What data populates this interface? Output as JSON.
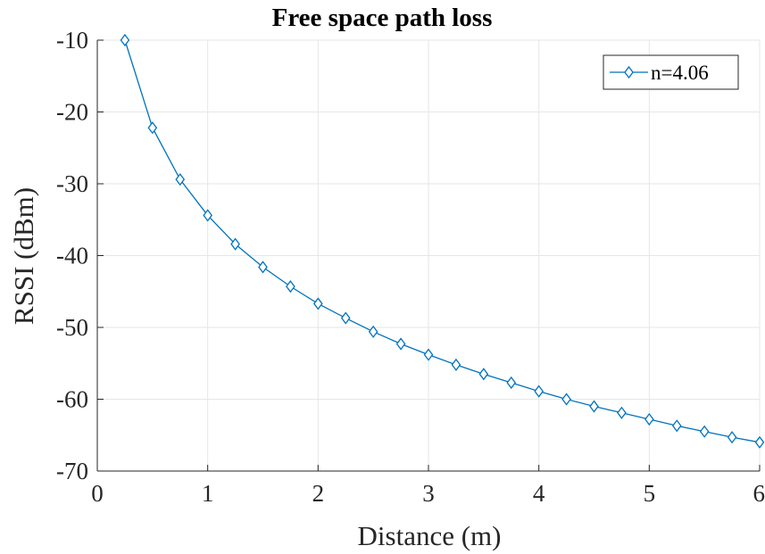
{
  "chart_data": {
    "type": "line",
    "title": "Free space path loss",
    "xlabel": "Distance (m)",
    "ylabel": "RSSI (dBm)",
    "xlim": [
      0,
      6
    ],
    "ylim": [
      -70,
      -10
    ],
    "xticks": [
      0,
      1,
      2,
      3,
      4,
      5,
      6
    ],
    "yticks": [
      -70,
      -60,
      -50,
      -40,
      -30,
      -20,
      -10
    ],
    "xtick_labels": [
      "0",
      "1",
      "2",
      "3",
      "4",
      "5",
      "6"
    ],
    "ytick_labels": [
      "-70",
      "-60",
      "-50",
      "-40",
      "-30",
      "-20",
      "-10"
    ],
    "grid": true,
    "legend_position": "top-right",
    "marker": "diamond",
    "colors": {
      "series": "#0072bd",
      "grid": "#e6e6e6",
      "axis": "#262626"
    },
    "series": [
      {
        "name": "n=4.06",
        "x": [
          0.25,
          0.5,
          0.75,
          1.0,
          1.25,
          1.5,
          1.75,
          2.0,
          2.25,
          2.5,
          2.75,
          3.0,
          3.25,
          3.5,
          3.75,
          4.0,
          4.25,
          4.5,
          4.75,
          5.0,
          5.25,
          5.5,
          5.75,
          6.0
        ],
        "y": [
          -10.0,
          -22.2,
          -29.4,
          -34.4,
          -38.4,
          -41.6,
          -44.3,
          -46.7,
          -48.7,
          -50.6,
          -52.3,
          -53.8,
          -55.2,
          -56.5,
          -57.7,
          -58.9,
          -60.0,
          -61.0,
          -61.9,
          -62.8,
          -63.7,
          -64.5,
          -65.3,
          -66.0
        ]
      }
    ]
  }
}
